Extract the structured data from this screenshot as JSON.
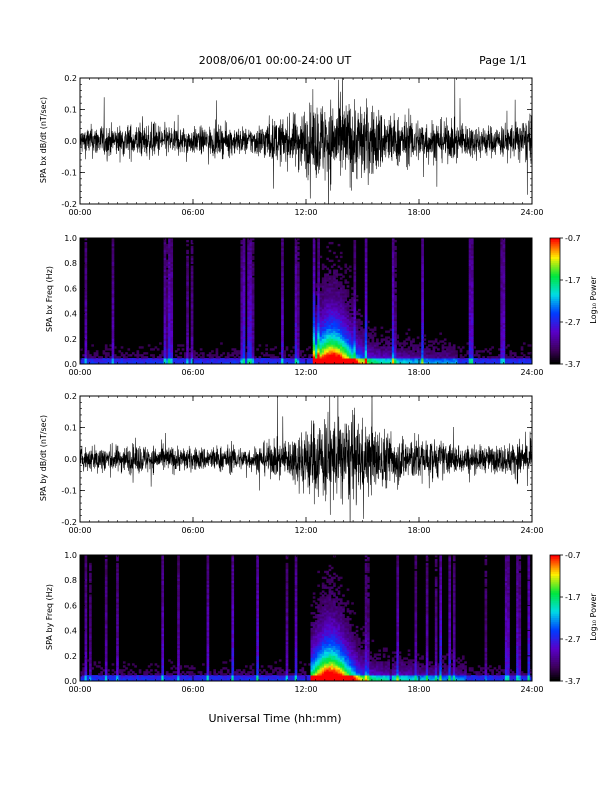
{
  "header": {
    "title": "2008/06/01  00:00-24:00 UT",
    "page": "Page 1/1"
  },
  "footer": {
    "xlabel": "Universal Time (hh:mm)"
  },
  "colors": {
    "background": "#ffffff",
    "trace": "#000000",
    "axis": "#000000"
  },
  "chart_data": [
    {
      "type": "line",
      "id": "bx-dbdt",
      "ylabel": "SPA bx dB/dt (nT/sec)",
      "x_unit": "hours UT",
      "xlim": [
        0,
        24
      ],
      "ylim": [
        -0.2,
        0.2
      ],
      "x_ticks": [
        "00:00",
        "06:00",
        "12:00",
        "18:00",
        "24:00"
      ],
      "y_ticks": [
        "-0.2",
        "-0.1",
        "0.0",
        "0.1",
        "0.2"
      ],
      "series": [
        {
          "x": [
            0,
            1,
            2,
            3,
            4,
            5,
            6,
            7,
            8,
            9,
            10,
            11,
            12,
            13,
            14,
            15,
            16,
            17,
            18,
            19,
            20,
            21,
            22,
            23,
            24
          ],
          "envelope": [
            0.07,
            0.09,
            0.08,
            0.09,
            0.09,
            0.08,
            0.07,
            0.08,
            0.08,
            0.07,
            0.11,
            0.12,
            0.18,
            0.22,
            0.22,
            0.21,
            0.17,
            0.13,
            0.12,
            0.11,
            0.1,
            0.09,
            0.08,
            0.1,
            0.12
          ]
        }
      ]
    },
    {
      "type": "heatmap",
      "id": "bx-freq",
      "ylabel": "SPA bx Freq (Hz)",
      "colorbar_label": "Log₁₀ Power",
      "colorbar_ticks": [
        "-0.7",
        "-1.7",
        "-2.7",
        "-3.7"
      ],
      "clim": [
        -3.7,
        -0.7
      ],
      "xlim": [
        0,
        24
      ],
      "ylim": [
        0,
        1.0
      ],
      "x_ticks": [
        "00:00",
        "06:00",
        "12:00",
        "18:00",
        "24:00"
      ],
      "y_ticks": [
        "0.0",
        "0.2",
        "0.4",
        "0.6",
        "0.8",
        "1.0"
      ],
      "peak_hours": [
        12.3,
        16.0
      ],
      "peak_center": 13.4
    },
    {
      "type": "line",
      "id": "by-dbdt",
      "ylabel": "SPA by dB/dt (nT/sec)",
      "x_unit": "hours UT",
      "xlim": [
        0,
        24
      ],
      "ylim": [
        -0.2,
        0.2
      ],
      "x_ticks": [
        "00:00",
        "06:00",
        "12:00",
        "18:00",
        "24:00"
      ],
      "y_ticks": [
        "-0.2",
        "-0.1",
        "0.0",
        "0.1",
        "0.2"
      ],
      "series": [
        {
          "x": [
            0,
            1,
            2,
            3,
            4,
            5,
            6,
            7,
            8,
            9,
            10,
            11,
            12,
            13,
            14,
            15,
            16,
            17,
            18,
            19,
            20,
            21,
            22,
            23,
            24
          ],
          "envelope": [
            0.06,
            0.08,
            0.07,
            0.08,
            0.07,
            0.07,
            0.06,
            0.07,
            0.07,
            0.06,
            0.09,
            0.1,
            0.19,
            0.24,
            0.22,
            0.2,
            0.16,
            0.13,
            0.12,
            0.1,
            0.08,
            0.07,
            0.07,
            0.09,
            0.12
          ]
        }
      ]
    },
    {
      "type": "heatmap",
      "id": "by-freq",
      "ylabel": "SPA by Freq (Hz)",
      "colorbar_label": "Log₁₀ Power",
      "colorbar_ticks": [
        "-0.7",
        "-1.7",
        "-2.7",
        "-3.7"
      ],
      "clim": [
        -3.7,
        -0.7
      ],
      "xlim": [
        0,
        24
      ],
      "ylim": [
        0,
        1.0
      ],
      "x_ticks": [
        "00:00",
        "06:00",
        "12:00",
        "18:00",
        "24:00"
      ],
      "y_ticks": [
        "0.0",
        "0.2",
        "0.4",
        "0.6",
        "0.8",
        "1.0"
      ],
      "peak_hours": [
        12.2,
        16.5
      ],
      "peak_center": 13.3
    }
  ]
}
